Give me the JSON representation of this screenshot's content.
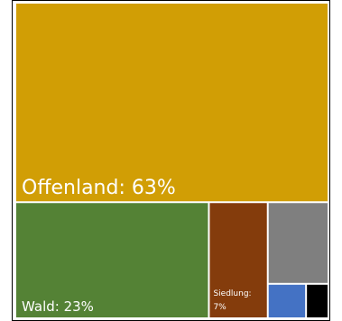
{
  "chart_data": {
    "type": "treemap",
    "title": "",
    "legend": "none",
    "segments": [
      {
        "label": "Offenland: 63%",
        "value": 63,
        "color": "#D19E05"
      },
      {
        "label": "Wald: 23%",
        "value": 23,
        "color": "#548235"
      },
      {
        "label_line1": "Siedlung:",
        "label_line2": "7%",
        "value": 7,
        "color": "#843C0C"
      },
      {
        "label": "",
        "value": 5,
        "color": "#7F7F7F"
      },
      {
        "label": "",
        "value": 1.3,
        "color": "#4472C4"
      },
      {
        "label": "",
        "value": 0.7,
        "color": "#000000"
      }
    ]
  }
}
